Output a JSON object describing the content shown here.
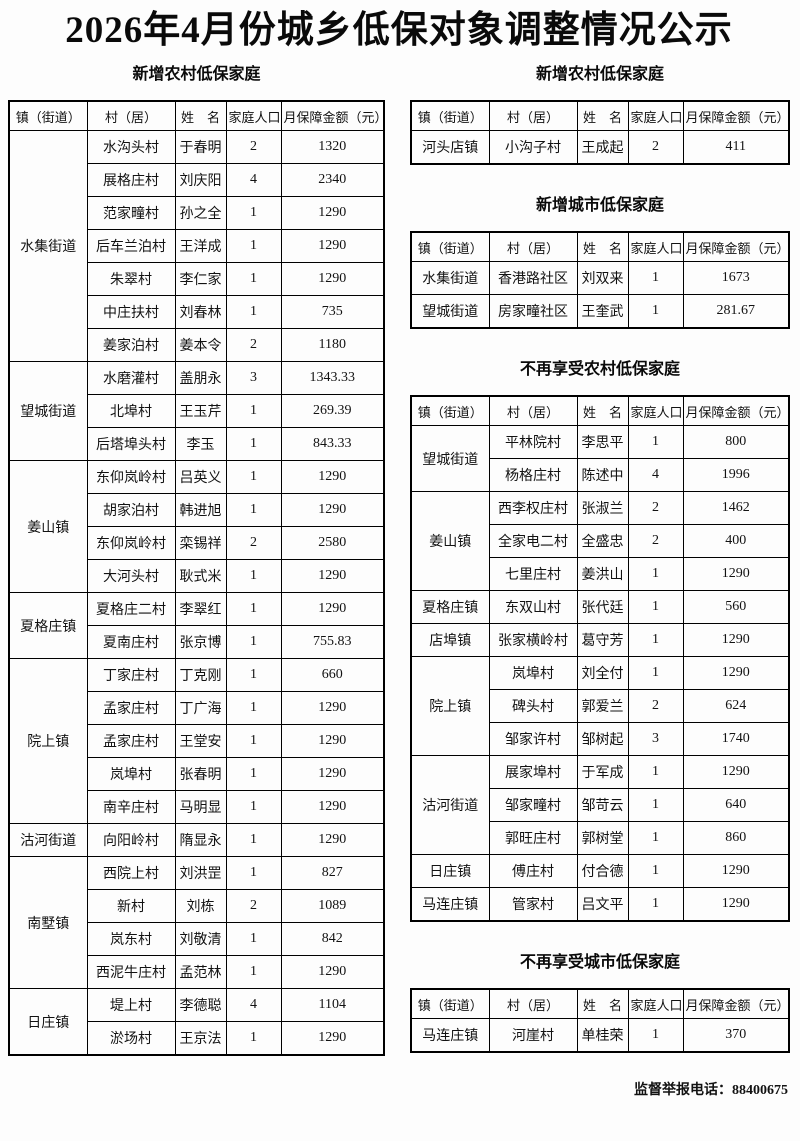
{
  "title": "2026年4月份城乡低保对象调整情况公示",
  "footer": "监督举报电话：88400675",
  "colors": {
    "text": "#121212",
    "border": "#000000",
    "background": "#fdfdfd"
  },
  "table_headers": [
    "镇（街道）",
    "村（居）",
    "姓　名",
    "家庭人口",
    "月保障金额（元）"
  ],
  "tables": [
    {
      "title": "新增农村低保家庭",
      "groups": [
        {
          "town": "水集街道",
          "rows": [
            [
              "水沟头村",
              "于春明",
              "2",
              "1320"
            ],
            [
              "展格庄村",
              "刘庆阳",
              "4",
              "2340"
            ],
            [
              "范家疃村",
              "孙之全",
              "1",
              "1290"
            ],
            [
              "后车兰泊村",
              "王洋成",
              "1",
              "1290"
            ],
            [
              "朱翠村",
              "李仁家",
              "1",
              "1290"
            ],
            [
              "中庄扶村",
              "刘春林",
              "1",
              "735"
            ],
            [
              "姜家泊村",
              "姜本令",
              "2",
              "1180"
            ]
          ]
        },
        {
          "town": "望城街道",
          "rows": [
            [
              "水磨灌村",
              "盖朋永",
              "3",
              "1343.33"
            ],
            [
              "北埠村",
              "王玉芹",
              "1",
              "269.39"
            ],
            [
              "后塔埠头村",
              "李玉",
              "1",
              "843.33"
            ]
          ]
        },
        {
          "town": "姜山镇",
          "rows": [
            [
              "东仰岚岭村",
              "吕英义",
              "1",
              "1290"
            ],
            [
              "胡家泊村",
              "韩进旭",
              "1",
              "1290"
            ],
            [
              "东仰岚岭村",
              "栾锡祥",
              "2",
              "2580"
            ],
            [
              "大河头村",
              "耿式米",
              "1",
              "1290"
            ]
          ]
        },
        {
          "town": "夏格庄镇",
          "rows": [
            [
              "夏格庄二村",
              "李翠红",
              "1",
              "1290"
            ],
            [
              "夏南庄村",
              "张京博",
              "1",
              "755.83"
            ]
          ]
        },
        {
          "town": "院上镇",
          "rows": [
            [
              "丁家庄村",
              "丁克刚",
              "1",
              "660"
            ],
            [
              "孟家庄村",
              "丁广海",
              "1",
              "1290"
            ],
            [
              "孟家庄村",
              "王堂安",
              "1",
              "1290"
            ],
            [
              "岚埠村",
              "张春明",
              "1",
              "1290"
            ],
            [
              "南辛庄村",
              "马明显",
              "1",
              "1290"
            ]
          ]
        },
        {
          "town": "沽河街道",
          "rows": [
            [
              "向阳岭村",
              "隋显永",
              "1",
              "1290"
            ]
          ]
        },
        {
          "town": "南墅镇",
          "rows": [
            [
              "西院上村",
              "刘洪罡",
              "1",
              "827"
            ],
            [
              "新村",
              "刘栋",
              "2",
              "1089"
            ],
            [
              "岚东村",
              "刘敬清",
              "1",
              "842"
            ],
            [
              "西泥牛庄村",
              "孟范林",
              "1",
              "1290"
            ]
          ]
        },
        {
          "town": "日庄镇",
          "rows": [
            [
              "堤上村",
              "李德聪",
              "4",
              "1104"
            ],
            [
              "淤场村",
              "王京法",
              "1",
              "1290"
            ]
          ]
        }
      ]
    },
    {
      "title": "新增农村低保家庭",
      "groups": [
        {
          "town": "河头店镇",
          "rows": [
            [
              "小沟子村",
              "王成起",
              "2",
              "411"
            ]
          ]
        }
      ]
    },
    {
      "title": "新增城市低保家庭",
      "groups": [
        {
          "town": "水集街道",
          "rows": [
            [
              "香港路社区",
              "刘双来",
              "1",
              "1673"
            ]
          ]
        },
        {
          "town": "望城街道",
          "rows": [
            [
              "房家疃社区",
              "王奎武",
              "1",
              "281.67"
            ]
          ]
        }
      ]
    },
    {
      "title": "不再享受农村低保家庭",
      "groups": [
        {
          "town": "望城街道",
          "rows": [
            [
              "平林院村",
              "李思平",
              "1",
              "800"
            ],
            [
              "杨格庄村",
              "陈述中",
              "4",
              "1996"
            ]
          ]
        },
        {
          "town": "姜山镇",
          "rows": [
            [
              "西李权庄村",
              "张淑兰",
              "2",
              "1462"
            ],
            [
              "全家电二村",
              "全盛忠",
              "2",
              "400"
            ],
            [
              "七里庄村",
              "姜洪山",
              "1",
              "1290"
            ]
          ]
        },
        {
          "town": "夏格庄镇",
          "rows": [
            [
              "东双山村",
              "张代廷",
              "1",
              "560"
            ]
          ]
        },
        {
          "town": "店埠镇",
          "rows": [
            [
              "张家横岭村",
              "葛守芳",
              "1",
              "1290"
            ]
          ]
        },
        {
          "town": "院上镇",
          "rows": [
            [
              "岚埠村",
              "刘全付",
              "1",
              "1290"
            ],
            [
              "碑头村",
              "郭爱兰",
              "2",
              "624"
            ],
            [
              "邹家许村",
              "邹树起",
              "3",
              "1740"
            ]
          ]
        },
        {
          "town": "沽河街道",
          "rows": [
            [
              "展家埠村",
              "于军成",
              "1",
              "1290"
            ],
            [
              "邹家疃村",
              "邹苛云",
              "1",
              "640"
            ],
            [
              "郭旺庄村",
              "郭树堂",
              "1",
              "860"
            ]
          ]
        },
        {
          "town": "日庄镇",
          "rows": [
            [
              "傅庄村",
              "付合德",
              "1",
              "1290"
            ]
          ]
        },
        {
          "town": "马连庄镇",
          "rows": [
            [
              "管家村",
              "吕文平",
              "1",
              "1290"
            ]
          ]
        }
      ]
    },
    {
      "title": "不再享受城市低保家庭",
      "groups": [
        {
          "town": "马连庄镇",
          "rows": [
            [
              "河崖村",
              "单桂荣",
              "1",
              "370"
            ]
          ]
        }
      ]
    }
  ]
}
